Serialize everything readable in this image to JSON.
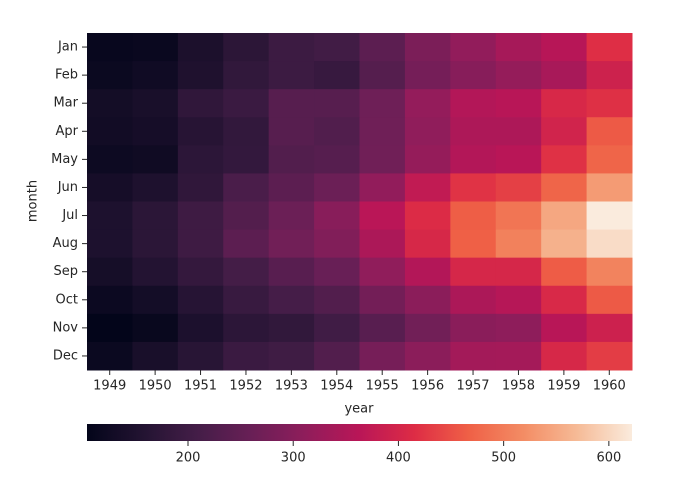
{
  "chart_data": {
    "type": "heatmap",
    "xlabel": "year",
    "ylabel": "month",
    "x": [
      "1949",
      "1950",
      "1951",
      "1952",
      "1953",
      "1954",
      "1955",
      "1956",
      "1957",
      "1958",
      "1959",
      "1960"
    ],
    "y": [
      "Jan",
      "Feb",
      "Mar",
      "Apr",
      "May",
      "Jun",
      "Jul",
      "Aug",
      "Sep",
      "Oct",
      "Nov",
      "Dec"
    ],
    "values": [
      [
        112,
        115,
        145,
        171,
        196,
        204,
        242,
        284,
        315,
        340,
        360,
        417
      ],
      [
        118,
        126,
        150,
        180,
        196,
        188,
        233,
        277,
        301,
        318,
        342,
        391
      ],
      [
        132,
        141,
        178,
        193,
        236,
        235,
        267,
        317,
        356,
        362,
        406,
        419
      ],
      [
        129,
        135,
        163,
        181,
        235,
        227,
        269,
        313,
        348,
        348,
        396,
        461
      ],
      [
        121,
        125,
        172,
        183,
        229,
        234,
        270,
        318,
        355,
        363,
        420,
        472
      ],
      [
        135,
        149,
        178,
        218,
        243,
        264,
        315,
        374,
        422,
        435,
        472,
        535
      ],
      [
        148,
        170,
        199,
        230,
        264,
        302,
        364,
        413,
        465,
        491,
        548,
        622
      ],
      [
        148,
        170,
        199,
        242,
        272,
        293,
        347,
        405,
        467,
        505,
        559,
        606
      ],
      [
        136,
        158,
        184,
        209,
        237,
        259,
        312,
        355,
        404,
        404,
        463,
        508
      ],
      [
        119,
        133,
        162,
        191,
        211,
        229,
        274,
        306,
        347,
        359,
        407,
        461
      ],
      [
        104,
        114,
        146,
        172,
        180,
        203,
        237,
        271,
        305,
        310,
        362,
        390
      ],
      [
        118,
        140,
        166,
        194,
        201,
        229,
        278,
        306,
        336,
        337,
        405,
        432
      ]
    ],
    "colormap": "rocket",
    "clim": [
      104,
      622
    ],
    "cticks": [
      200,
      300,
      400,
      500,
      600
    ]
  }
}
